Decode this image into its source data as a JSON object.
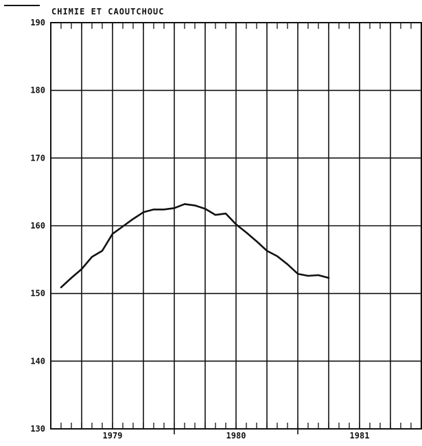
{
  "chart_data": {
    "type": "line",
    "title": "",
    "xlabel": "",
    "ylabel": "",
    "series_label": "CHIMIE ET CAOUTCHOUC",
    "ylim": [
      130,
      190
    ],
    "y_ticks": [
      "130",
      "140",
      "150",
      "160",
      "170",
      "180",
      "190"
    ],
    "x_year_labels": [
      {
        "label": "1979",
        "month_index": 6
      },
      {
        "label": "1980",
        "month_index": 18
      },
      {
        "label": "1981",
        "month_index": 30
      }
    ],
    "x_range_months": [
      0,
      36
    ],
    "grid": true,
    "series": [
      {
        "month_index": [
          1,
          2,
          3,
          4,
          5,
          6,
          7,
          8,
          9,
          10,
          11,
          12,
          13,
          14,
          15,
          16,
          17,
          18,
          19,
          20,
          21,
          22,
          23,
          24,
          25,
          26,
          27
        ],
        "values": [
          150.9,
          152.3,
          153.6,
          155.4,
          156.3,
          158.8,
          159.9,
          161.0,
          162.0,
          162.4,
          162.4,
          162.6,
          163.2,
          163.0,
          162.5,
          161.6,
          161.8,
          160.2,
          159.0,
          157.7,
          156.3,
          155.5,
          154.3,
          152.9,
          152.6,
          152.7,
          152.3
        ]
      }
    ]
  }
}
